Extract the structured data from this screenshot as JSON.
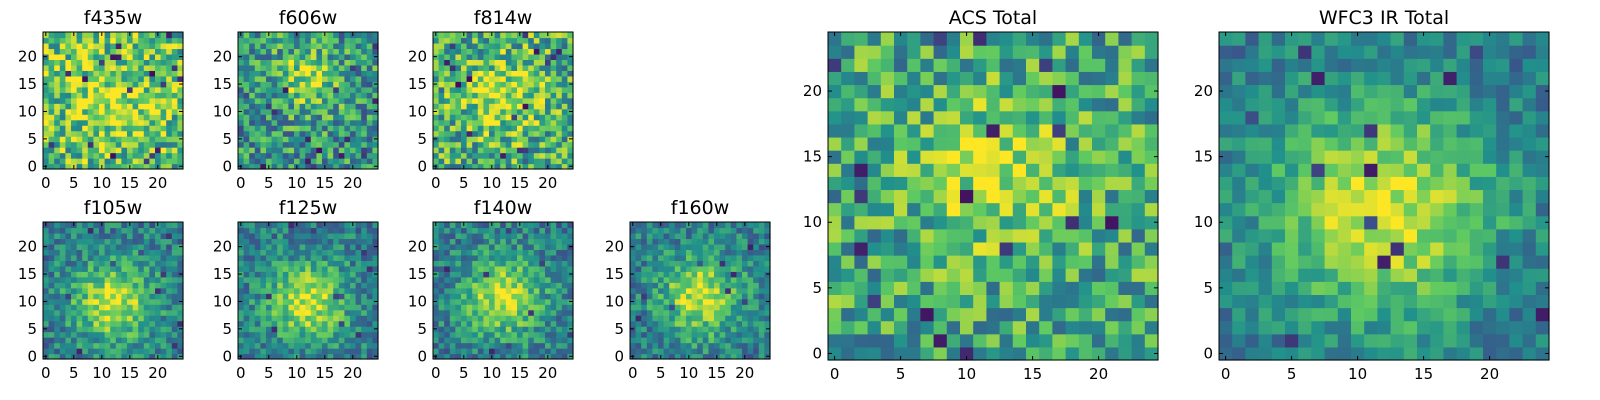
{
  "colors": {
    "colormap": [
      "#440154",
      "#3b528b",
      "#21918c",
      "#5ec962",
      "#fde725"
    ],
    "frame": "#000000",
    "background": "#ffffff"
  },
  "chart_data": [
    {
      "type": "heatmap",
      "title": "f435w",
      "grid_size": 25,
      "center": [
        12,
        12
      ],
      "spread": 6,
      "peak": 0.22,
      "base": 0.68,
      "noise": 0.32,
      "dark_pixels": 18,
      "dark_min": 0.03,
      "seed": 11,
      "xticks": [
        0,
        5,
        10,
        15,
        20
      ],
      "yticks": [
        0,
        5,
        10,
        15,
        20
      ],
      "xlim": [
        0,
        25
      ],
      "ylim": [
        0,
        25
      ]
    },
    {
      "type": "heatmap",
      "title": "f606w",
      "grid_size": 25,
      "center": [
        12,
        16
      ],
      "spread": 4,
      "peak": 0.35,
      "base": 0.52,
      "noise": 0.3,
      "dark_pixels": 16,
      "dark_min": 0.03,
      "seed": 23,
      "xticks": [
        0,
        5,
        10,
        15,
        20
      ],
      "yticks": [
        0,
        5,
        10,
        15,
        20
      ],
      "xlim": [
        0,
        25
      ],
      "ylim": [
        0,
        25
      ]
    },
    {
      "type": "heatmap",
      "title": "f814w",
      "grid_size": 25,
      "center": [
        12,
        13
      ],
      "spread": 5,
      "peak": 0.28,
      "base": 0.62,
      "noise": 0.32,
      "dark_pixels": 16,
      "dark_min": 0.03,
      "seed": 37,
      "xticks": [
        0,
        5,
        10,
        15,
        20
      ],
      "yticks": [
        0,
        5,
        10,
        15,
        20
      ],
      "xlim": [
        0,
        25
      ],
      "ylim": [
        0,
        25
      ]
    },
    {
      "type": "heatmap",
      "title": "f105w",
      "grid_size": 25,
      "center": [
        12,
        10
      ],
      "spread": 5,
      "peak": 0.5,
      "base": 0.42,
      "noise": 0.2,
      "dark_pixels": 10,
      "dark_min": 0.1,
      "seed": 41,
      "xticks": [
        0,
        5,
        10,
        15,
        20
      ],
      "yticks": [
        0,
        5,
        10,
        15,
        20
      ],
      "xlim": [
        0,
        25
      ],
      "ylim": [
        0,
        25
      ]
    },
    {
      "type": "heatmap",
      "title": "f125w",
      "grid_size": 25,
      "center": [
        12,
        10
      ],
      "spread": 5,
      "peak": 0.5,
      "base": 0.42,
      "noise": 0.2,
      "dark_pixels": 10,
      "dark_min": 0.1,
      "seed": 53,
      "xticks": [
        0,
        5,
        10,
        15,
        20
      ],
      "yticks": [
        0,
        5,
        10,
        15,
        20
      ],
      "xlim": [
        0,
        25
      ],
      "ylim": [
        0,
        25
      ]
    },
    {
      "type": "heatmap",
      "title": "f140w",
      "grid_size": 25,
      "center": [
        12,
        11
      ],
      "spread": 5,
      "peak": 0.5,
      "base": 0.42,
      "noise": 0.2,
      "dark_pixels": 10,
      "dark_min": 0.1,
      "seed": 67,
      "xticks": [
        0,
        5,
        10,
        15,
        20
      ],
      "yticks": [
        0,
        5,
        10,
        15,
        20
      ],
      "xlim": [
        0,
        25
      ],
      "ylim": [
        0,
        25
      ]
    },
    {
      "type": "heatmap",
      "title": "f160w",
      "grid_size": 25,
      "center": [
        12,
        11
      ],
      "spread": 5,
      "peak": 0.5,
      "base": 0.42,
      "noise": 0.2,
      "dark_pixels": 10,
      "dark_min": 0.1,
      "seed": 79,
      "xticks": [
        0,
        5,
        10,
        15,
        20
      ],
      "yticks": [
        0,
        5,
        10,
        15,
        20
      ],
      "xlim": [
        0,
        25
      ],
      "ylim": [
        0,
        25
      ]
    },
    {
      "type": "heatmap",
      "title": "ACS Total",
      "grid_size": 25,
      "center": [
        12,
        14
      ],
      "spread": 4,
      "peak": 0.3,
      "base": 0.6,
      "noise": 0.28,
      "dark_pixels": 18,
      "dark_min": 0.03,
      "seed": 97,
      "xticks": [
        0,
        5,
        10,
        15,
        20
      ],
      "yticks": [
        0,
        5,
        10,
        15,
        20
      ],
      "xlim": [
        0,
        25
      ],
      "ylim": [
        0,
        25
      ]
    },
    {
      "type": "heatmap",
      "title": "WFC3 IR Total",
      "grid_size": 25,
      "center": [
        12,
        11
      ],
      "spread": 6,
      "peak": 0.55,
      "base": 0.4,
      "noise": 0.16,
      "dark_pixels": 14,
      "dark_min": 0.08,
      "seed": 131,
      "xticks": [
        0,
        5,
        10,
        15,
        20
      ],
      "yticks": [
        0,
        5,
        10,
        15,
        20
      ],
      "xlim": [
        0,
        25
      ],
      "ylim": [
        0,
        25
      ]
    }
  ]
}
